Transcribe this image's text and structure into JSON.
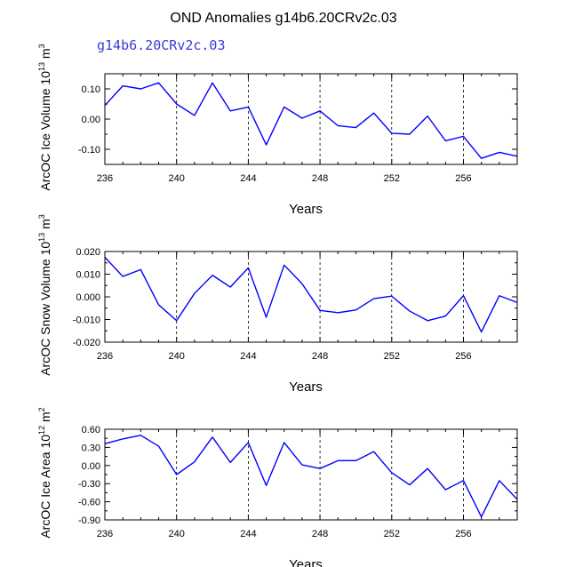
{
  "title": "OND Anomalies g14b6.20CRv2c.03",
  "legend_label": "g14b6.20CRv2c.03",
  "line_color": "#0000ff",
  "chart_data": [
    {
      "type": "line",
      "ylabel": "ArcOC Ice Volume 10^13 m^3",
      "ylabel_parts": {
        "base": "ArcOC Ice Volume 10",
        "exp1": "13",
        "mid": " m",
        "exp2": "3"
      },
      "xlabel": "Years",
      "xlim": [
        236,
        259
      ],
      "ylim": [
        -0.15,
        0.15
      ],
      "xticks": [
        236,
        240,
        244,
        248,
        252,
        256
      ],
      "yticks": [
        0.1,
        0.0,
        -0.1
      ],
      "ytick_labels": [
        "0.10",
        "0.00",
        "-0.10"
      ],
      "x": [
        236,
        237,
        238,
        239,
        240,
        241,
        242,
        243,
        244,
        245,
        246,
        247,
        248,
        249,
        250,
        251,
        252,
        253,
        254,
        255,
        256,
        257,
        258,
        259
      ],
      "values": [
        0.045,
        0.11,
        0.1,
        0.12,
        0.05,
        0.012,
        0.12,
        0.027,
        0.04,
        -0.085,
        0.04,
        0.003,
        0.027,
        -0.022,
        -0.028,
        0.02,
        -0.047,
        -0.05,
        0.01,
        -0.072,
        -0.057,
        -0.13,
        -0.11,
        -0.123
      ]
    },
    {
      "type": "line",
      "ylabel": "ArcOC Snow Volume 10^13 m^3",
      "ylabel_parts": {
        "base": "ArcOC Snow Volume 10",
        "exp1": "13",
        "mid": " m",
        "exp2": "3"
      },
      "xlabel": "Years",
      "xlim": [
        236,
        259
      ],
      "ylim": [
        -0.02,
        0.02
      ],
      "xticks": [
        236,
        240,
        244,
        248,
        252,
        256
      ],
      "yticks": [
        0.02,
        0.01,
        0.0,
        -0.01,
        -0.02
      ],
      "ytick_labels": [
        "0.020",
        "0.010",
        "0.000",
        "-0.010",
        "-0.020"
      ],
      "x": [
        236,
        237,
        238,
        239,
        240,
        241,
        242,
        243,
        244,
        245,
        246,
        247,
        248,
        249,
        250,
        251,
        252,
        253,
        254,
        255,
        256,
        257,
        258,
        259
      ],
      "values": [
        0.0175,
        0.009,
        0.012,
        -0.0035,
        -0.0105,
        0.0015,
        0.0095,
        0.0043,
        0.0128,
        -0.009,
        0.014,
        0.0058,
        -0.006,
        -0.007,
        -0.0058,
        -0.0008,
        0.0003,
        -0.0063,
        -0.0105,
        -0.0085,
        0.0005,
        -0.0155,
        0.0005,
        -0.0025
      ]
    },
    {
      "type": "line",
      "ylabel": "ArcOC Ice Area 10^12 m^2",
      "ylabel_parts": {
        "base": "ArcOC Ice Area 10",
        "exp1": "12",
        "mid": " m",
        "exp2": "2"
      },
      "xlabel": "Years",
      "xlim": [
        236,
        259
      ],
      "ylim": [
        -0.9,
        0.6
      ],
      "xticks": [
        236,
        240,
        244,
        248,
        252,
        256
      ],
      "yticks": [
        0.6,
        0.3,
        0.0,
        -0.3,
        -0.6,
        -0.9
      ],
      "ytick_labels": [
        "0.60",
        "0.30",
        "0.00",
        "-0.30",
        "-0.60",
        "-0.90"
      ],
      "x": [
        236,
        237,
        238,
        239,
        240,
        241,
        242,
        243,
        244,
        245,
        246,
        247,
        248,
        249,
        250,
        251,
        252,
        253,
        254,
        255,
        256,
        257,
        258,
        259
      ],
      "values": [
        0.36,
        0.44,
        0.5,
        0.32,
        -0.15,
        0.06,
        0.47,
        0.05,
        0.38,
        -0.33,
        0.38,
        0.01,
        -0.05,
        0.08,
        0.08,
        0.23,
        -0.12,
        -0.32,
        -0.05,
        -0.4,
        -0.25,
        -0.85,
        -0.25,
        -0.56
      ]
    }
  ]
}
